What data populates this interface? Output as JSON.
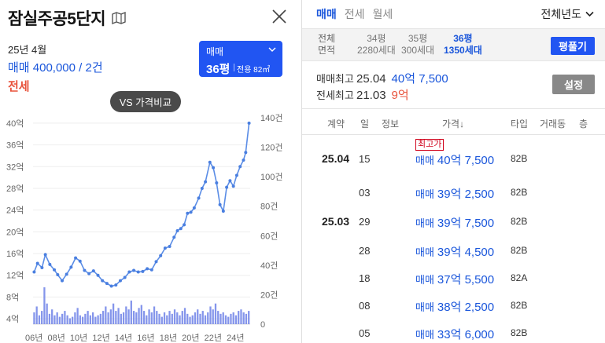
{
  "left": {
    "title": "잠실주공5단지",
    "date": "25년 4월",
    "sale_summary": "매매 400,000 / 2건",
    "jeonse_label": "전세",
    "type_box": {
      "kind": "매매",
      "pyeong": "36평",
      "area": "전용 82㎡"
    },
    "vs_button": "VS 가격비교"
  },
  "chart_data": {
    "type": "line",
    "y_left_ticks": [
      "4억",
      "8억",
      "12억",
      "16억",
      "20억",
      "24억",
      "28억",
      "32억",
      "36억",
      "40억"
    ],
    "y_right_ticks": [
      "0",
      "20건",
      "40건",
      "60건",
      "80건",
      "100건",
      "120건",
      "140건"
    ],
    "x_ticks": [
      "06년",
      "08년",
      "10년",
      "12년",
      "14년",
      "16년",
      "18년",
      "20년",
      "22년",
      "24년"
    ],
    "ylim_left": [
      3,
      41
    ],
    "ylim_right": [
      0,
      140
    ],
    "xlim": [
      2006,
      2025.4
    ],
    "price_series": [
      [
        2006.1,
        12.6
      ],
      [
        2006.4,
        14.2
      ],
      [
        2006.8,
        13.4
      ],
      [
        2007.1,
        15.8
      ],
      [
        2007.5,
        14.0
      ],
      [
        2007.9,
        13.0
      ],
      [
        2008.2,
        12.1
      ],
      [
        2008.6,
        11.0
      ],
      [
        2009.0,
        12.2
      ],
      [
        2009.4,
        13.5
      ],
      [
        2009.8,
        15.2
      ],
      [
        2010.2,
        14.6
      ],
      [
        2010.6,
        12.9
      ],
      [
        2011.0,
        12.3
      ],
      [
        2011.4,
        12.8
      ],
      [
        2011.8,
        12.0
      ],
      [
        2012.2,
        11.0
      ],
      [
        2012.6,
        10.5
      ],
      [
        2013.0,
        10.0
      ],
      [
        2013.4,
        10.2
      ],
      [
        2013.8,
        11.0
      ],
      [
        2014.2,
        11.6
      ],
      [
        2014.6,
        12.6
      ],
      [
        2015.0,
        12.9
      ],
      [
        2015.4,
        12.6
      ],
      [
        2015.8,
        12.7
      ],
      [
        2016.2,
        13.2
      ],
      [
        2016.6,
        13.0
      ],
      [
        2017.0,
        14.5
      ],
      [
        2017.4,
        15.6
      ],
      [
        2017.8,
        17.0
      ],
      [
        2018.2,
        17.3
      ],
      [
        2018.6,
        19.0
      ],
      [
        2018.9,
        20.2
      ],
      [
        2019.2,
        20.6
      ],
      [
        2019.5,
        21.3
      ],
      [
        2019.8,
        23.4
      ],
      [
        2020.1,
        23.6
      ],
      [
        2020.4,
        24.4
      ],
      [
        2020.8,
        26.2
      ],
      [
        2021.1,
        28.0
      ],
      [
        2021.4,
        29.2
      ],
      [
        2021.8,
        32.8
      ],
      [
        2022.1,
        31.8
      ],
      [
        2022.4,
        29.0
      ],
      [
        2022.7,
        25.0
      ],
      [
        2023.0,
        23.8
      ],
      [
        2023.3,
        28.2
      ],
      [
        2023.6,
        29.4
      ],
      [
        2023.9,
        28.4
      ],
      [
        2024.2,
        30.4
      ],
      [
        2024.5,
        32.0
      ],
      [
        2024.8,
        33.2
      ],
      [
        2025.0,
        34.6
      ],
      [
        2025.3,
        40.0
      ]
    ],
    "volume_series": [
      8,
      12,
      6,
      9,
      25,
      14,
      7,
      10,
      6,
      8,
      5,
      7,
      9,
      6,
      4,
      5,
      8,
      11,
      6,
      5,
      7,
      9,
      6,
      8,
      5,
      6,
      7,
      9,
      12,
      8,
      10,
      14,
      9,
      11,
      7,
      8,
      12,
      10,
      16,
      9,
      8,
      11,
      13,
      9,
      6,
      10,
      8,
      12,
      9,
      7,
      5,
      8,
      6,
      9,
      7,
      10,
      8,
      6,
      9,
      11,
      7,
      5,
      6,
      8,
      10,
      7,
      9,
      6,
      8,
      12,
      10,
      14,
      9,
      7,
      8,
      6,
      5,
      7,
      8,
      6,
      9,
      10,
      8,
      7,
      9
    ]
  },
  "right": {
    "tabs": [
      "매매",
      "전세",
      "월세"
    ],
    "year_select": "전체년도",
    "area_bar": {
      "row_labels": [
        "전체",
        "면적"
      ],
      "cols": [
        {
          "pyeong": "34평",
          "units": "2280세대"
        },
        {
          "pyeong": "35평",
          "units": "300세대"
        },
        {
          "pyeong": "36평",
          "units": "1350세대"
        }
      ],
      "pyeong_button": "평풀기"
    },
    "max_sale": {
      "label": "매매최고",
      "date": "25.04",
      "value": "40억 7,500"
    },
    "max_jeonse": {
      "label": "전세최고",
      "date": "21.03",
      "value": "9억"
    },
    "settings_button": "설정",
    "table_headers": [
      "계약",
      "일",
      "정보",
      "가격↓",
      "타입",
      "거래동",
      "층"
    ],
    "rows": [
      {
        "ym": "25.04",
        "day": "15",
        "badge": "최고가",
        "kind": "매매",
        "price": "40억 7,500",
        "ptype": "82B"
      },
      {
        "ym": "",
        "day": "03",
        "badge": "",
        "kind": "매매",
        "price": "39억 2,500",
        "ptype": "82B"
      },
      {
        "ym": "25.03",
        "day": "29",
        "badge": "",
        "kind": "매매",
        "price": "39억 7,500",
        "ptype": "82B"
      },
      {
        "ym": "",
        "day": "28",
        "badge": "",
        "kind": "매매",
        "price": "39억 4,500",
        "ptype": "82B"
      },
      {
        "ym": "",
        "day": "18",
        "badge": "",
        "kind": "매매",
        "price": "37억 5,500",
        "ptype": "82A"
      },
      {
        "ym": "",
        "day": "08",
        "badge": "",
        "kind": "매매",
        "price": "38억 2,500",
        "ptype": "82B"
      },
      {
        "ym": "",
        "day": "05",
        "badge": "",
        "kind": "매매",
        "price": "33억 6,000",
        "ptype": "82B"
      }
    ]
  }
}
